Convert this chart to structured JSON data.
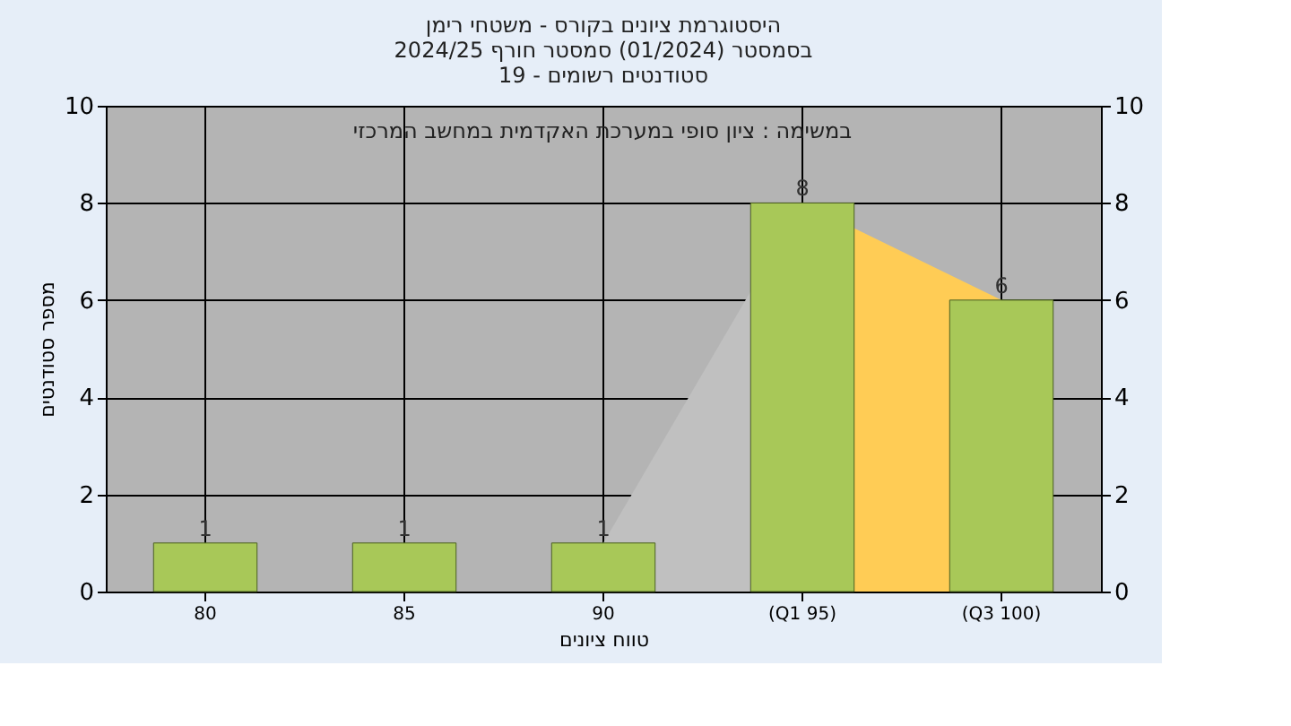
{
  "chart_data": {
    "type": "bar",
    "title": [
      "היסטוגרמת ציונים בקורס - משטחי רימן",
      "בסמסטר  (01/2024)  סמסטר חורף 2024/25",
      "סטודנטים רשומים - 19"
    ],
    "xlabel": "טווח ציונים",
    "ylabel": "מספר סטודנטים",
    "annotations": [
      "במשימה : ציון סופי במערכת האקדמית במחשב המרכזי"
    ],
    "categories": [
      "80",
      "85",
      "90",
      "(Q1 95)",
      "(Q3 100)"
    ],
    "series": [
      {
        "type": "area",
        "color": "#c0c0c0",
        "x": [
          "90",
          "(Q1 95)"
        ],
        "values": [
          1,
          8
        ]
      },
      {
        "type": "area",
        "color": "#ffcc55",
        "x": [
          "(Q1 95)",
          "(Q3 100)"
        ],
        "values": [
          8,
          6
        ]
      },
      {
        "color": "#a8c858",
        "values": [
          1,
          1,
          1,
          8,
          6
        ],
        "value_labels": [
          "1",
          "1",
          "1",
          "8",
          "6"
        ]
      }
    ],
    "ylim": [
      0,
      10
    ],
    "yticks": [
      0,
      2,
      4,
      6,
      8,
      10
    ],
    "y2lim": [
      0,
      10
    ],
    "y2ticks": [
      0,
      2,
      4,
      6,
      8,
      10
    ],
    "grid": true
  }
}
